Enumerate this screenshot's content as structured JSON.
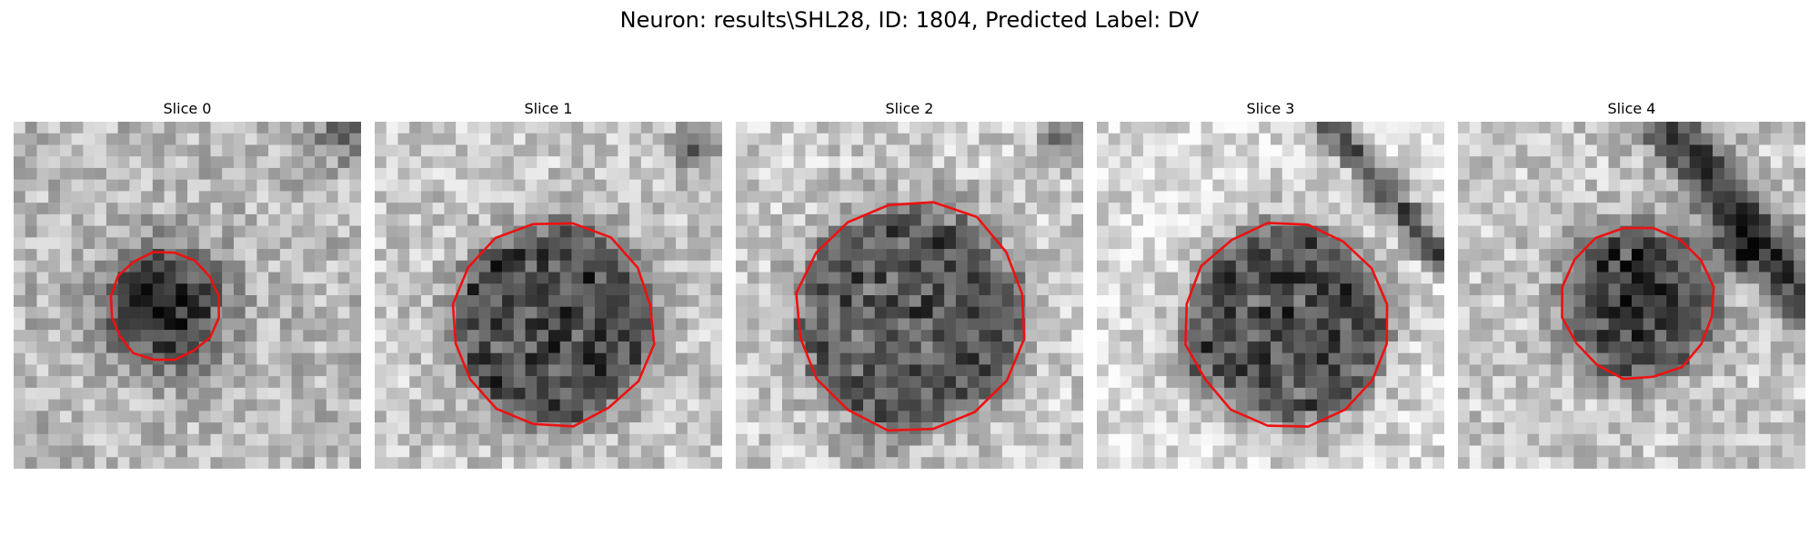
{
  "figure": {
    "title": "Neuron: results\\SHL28, ID: 1804, Predicted Label: DV"
  },
  "colors": {
    "background": "#ffffff",
    "outline": "#ee1111"
  },
  "image_style": "grayscale pixel grid with a red polygon outline around a dark circular cell",
  "panels": [
    {
      "title": "Slice 0"
    },
    {
      "title": "Slice 1"
    },
    {
      "title": "Slice 2"
    },
    {
      "title": "Slice 3"
    },
    {
      "title": "Slice 4"
    }
  ]
}
